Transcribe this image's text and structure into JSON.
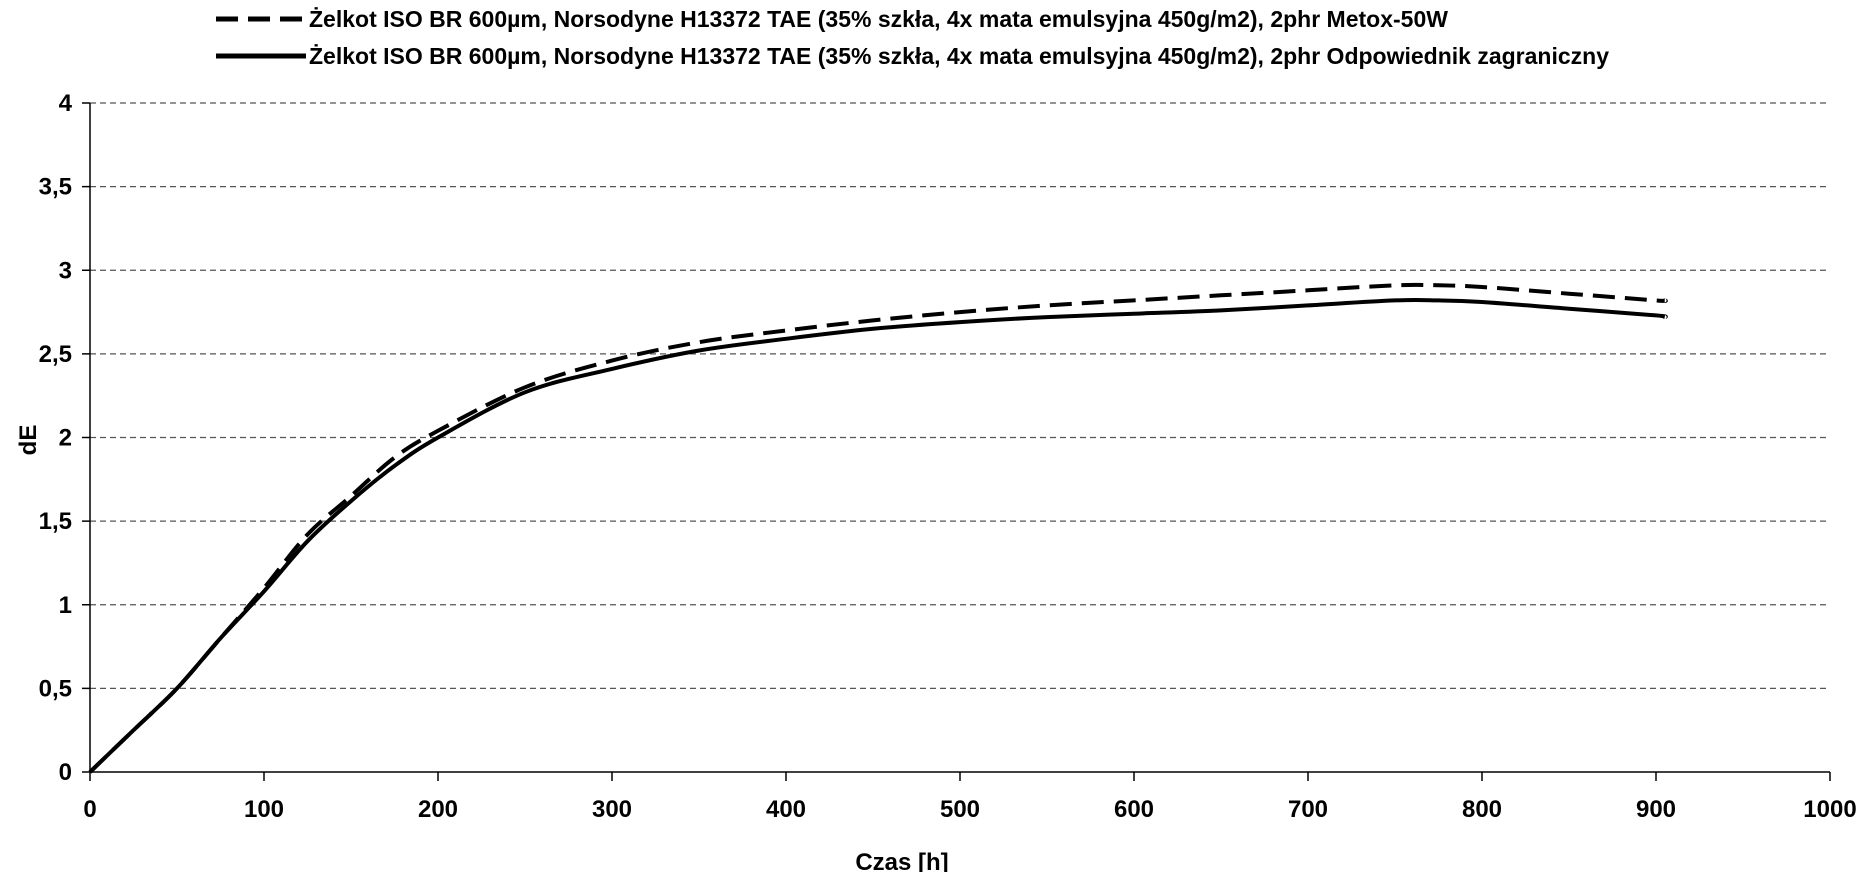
{
  "chart_data": {
    "type": "line",
    "xlabel": "Czas [h]",
    "ylabel": "dE",
    "xlim": [
      0,
      1000
    ],
    "ylim": [
      0,
      4
    ],
    "x_ticks": [
      0,
      100,
      200,
      300,
      400,
      500,
      600,
      700,
      800,
      900,
      1000
    ],
    "x_tick_labels": [
      "0",
      "100",
      "200",
      "300",
      "400",
      "500",
      "600",
      "700",
      "800",
      "900",
      "1000"
    ],
    "y_ticks": [
      0,
      0.5,
      1,
      1.5,
      2,
      2.5,
      3,
      3.5,
      4
    ],
    "y_tick_labels": [
      "0",
      "0,5",
      "1",
      "1,5",
      "2",
      "2,5",
      "3",
      "3,5",
      "4"
    ],
    "grid": "horizontal dashed",
    "legend_position": "top",
    "series": [
      {
        "name": "Żelkot ISO BR 600µm, Norsodyne H13372 TAE (35% szkła, 4x mata emulsyjna 450g/m2), 2phr Metox-50W",
        "line_style": "dashed",
        "color": "#000000",
        "x": [
          0,
          25,
          50,
          75,
          100,
          125,
          150,
          175,
          200,
          250,
          300,
          350,
          400,
          450,
          500,
          550,
          600,
          650,
          700,
          750,
          775,
          800,
          850,
          900,
          905
        ],
        "y": [
          0,
          0.25,
          0.5,
          0.8,
          1.1,
          1.42,
          1.65,
          1.88,
          2.04,
          2.3,
          2.46,
          2.57,
          2.64,
          2.7,
          2.75,
          2.79,
          2.82,
          2.85,
          2.88,
          2.91,
          2.91,
          2.9,
          2.86,
          2.82,
          2.82
        ]
      },
      {
        "name": "Żelkot ISO BR 600µm, Norsodyne H13372 TAE (35% szkła, 4x mata emulsyjna 450g/m2), 2phr Odpowiednik zagraniczny",
        "line_style": "solid",
        "color": "#000000",
        "x": [
          0,
          25,
          50,
          75,
          100,
          125,
          150,
          175,
          200,
          250,
          300,
          350,
          400,
          450,
          500,
          550,
          600,
          650,
          700,
          750,
          775,
          800,
          850,
          900,
          905
        ],
        "y": [
          0,
          0.25,
          0.5,
          0.8,
          1.08,
          1.38,
          1.62,
          1.83,
          2.0,
          2.27,
          2.41,
          2.52,
          2.59,
          2.65,
          2.69,
          2.72,
          2.74,
          2.76,
          2.79,
          2.82,
          2.82,
          2.81,
          2.77,
          2.73,
          2.72
        ]
      }
    ]
  }
}
